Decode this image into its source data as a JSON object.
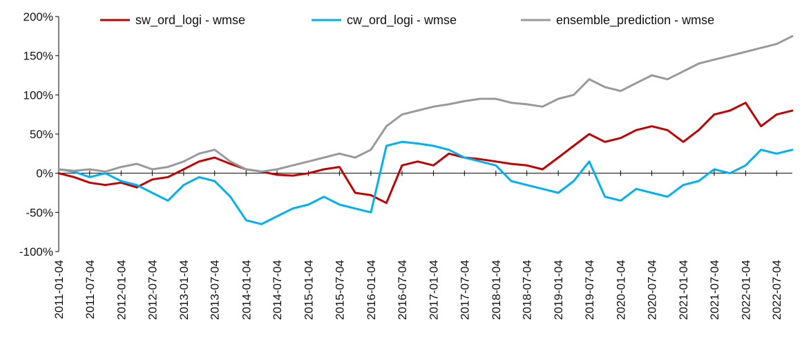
{
  "chart_data": {
    "type": "line",
    "title": "",
    "xlabel": "",
    "ylabel": "",
    "ylim": [
      -100,
      200
    ],
    "y_ticks": [
      -100,
      -50,
      0,
      50,
      100,
      150,
      200
    ],
    "y_tick_labels": [
      "-100%",
      "-50%",
      "0%",
      "50%",
      "100%",
      "150%",
      "200%"
    ],
    "x_range": [
      "2011-01-04",
      "2022-10-04"
    ],
    "x_ticks": [
      "2011-01-04",
      "2011-07-04",
      "2012-01-04",
      "2012-07-04",
      "2013-01-04",
      "2013-07-04",
      "2014-01-04",
      "2014-07-04",
      "2015-01-04",
      "2015-07-04",
      "2016-01-04",
      "2016-07-04",
      "2017-01-04",
      "2017-07-04",
      "2018-01-04",
      "2018-07-04",
      "2019-01-04",
      "2019-07-04",
      "2020-01-04",
      "2020-07-04",
      "2021-01-04",
      "2021-07-04",
      "2022-01-04",
      "2022-07-04"
    ],
    "grid": false,
    "legend_position": "top",
    "x": [
      "2011-01-04",
      "2011-04-04",
      "2011-07-04",
      "2011-10-04",
      "2012-01-04",
      "2012-04-04",
      "2012-07-04",
      "2012-10-04",
      "2013-01-04",
      "2013-04-04",
      "2013-07-04",
      "2013-10-04",
      "2014-01-04",
      "2014-04-04",
      "2014-07-04",
      "2014-10-04",
      "2015-01-04",
      "2015-04-04",
      "2015-07-04",
      "2015-10-04",
      "2016-01-04",
      "2016-04-04",
      "2016-07-04",
      "2016-10-04",
      "2017-01-04",
      "2017-04-04",
      "2017-07-04",
      "2017-10-04",
      "2018-01-04",
      "2018-04-04",
      "2018-07-04",
      "2018-10-04",
      "2019-01-04",
      "2019-04-04",
      "2019-07-04",
      "2019-10-04",
      "2020-01-04",
      "2020-04-04",
      "2020-07-04",
      "2020-10-04",
      "2021-01-04",
      "2021-04-04",
      "2021-07-04",
      "2021-10-04",
      "2022-01-04",
      "2022-04-04",
      "2022-07-04",
      "2022-10-04"
    ],
    "series": [
      {
        "name": "sw_ord_logi - wmse",
        "color": "#c00000",
        "values": [
          0,
          -5,
          -12,
          -15,
          -12,
          -18,
          -8,
          -5,
          5,
          15,
          20,
          12,
          5,
          2,
          -2,
          -3,
          0,
          5,
          8,
          -25,
          -28,
          -38,
          10,
          15,
          10,
          25,
          20,
          18,
          15,
          12,
          10,
          5,
          20,
          35,
          50,
          40,
          45,
          55,
          60,
          55,
          40,
          55,
          75,
          80,
          90,
          60,
          75,
          80
        ]
      },
      {
        "name": "cw_ord_logi - wmse",
        "color": "#00b0f0",
        "values": [
          5,
          2,
          -5,
          0,
          -10,
          -15,
          -25,
          -35,
          -15,
          -5,
          -10,
          -30,
          -60,
          -65,
          -55,
          -45,
          -40,
          -30,
          -40,
          -45,
          -50,
          35,
          40,
          38,
          35,
          30,
          20,
          15,
          10,
          -10,
          -15,
          -20,
          -25,
          -10,
          15,
          -30,
          -35,
          -20,
          -25,
          -30,
          -15,
          -10,
          5,
          0,
          10,
          30,
          25,
          30
        ]
      },
      {
        "name": "ensemble_prediction - wmse",
        "color": "#999999",
        "values": [
          5,
          3,
          5,
          2,
          8,
          12,
          5,
          8,
          15,
          25,
          30,
          15,
          5,
          2,
          5,
          10,
          15,
          20,
          25,
          20,
          30,
          60,
          75,
          80,
          85,
          88,
          92,
          95,
          95,
          90,
          88,
          85,
          95,
          100,
          120,
          110,
          105,
          115,
          125,
          120,
          130,
          140,
          145,
          150,
          155,
          160,
          165,
          175
        ]
      }
    ]
  }
}
